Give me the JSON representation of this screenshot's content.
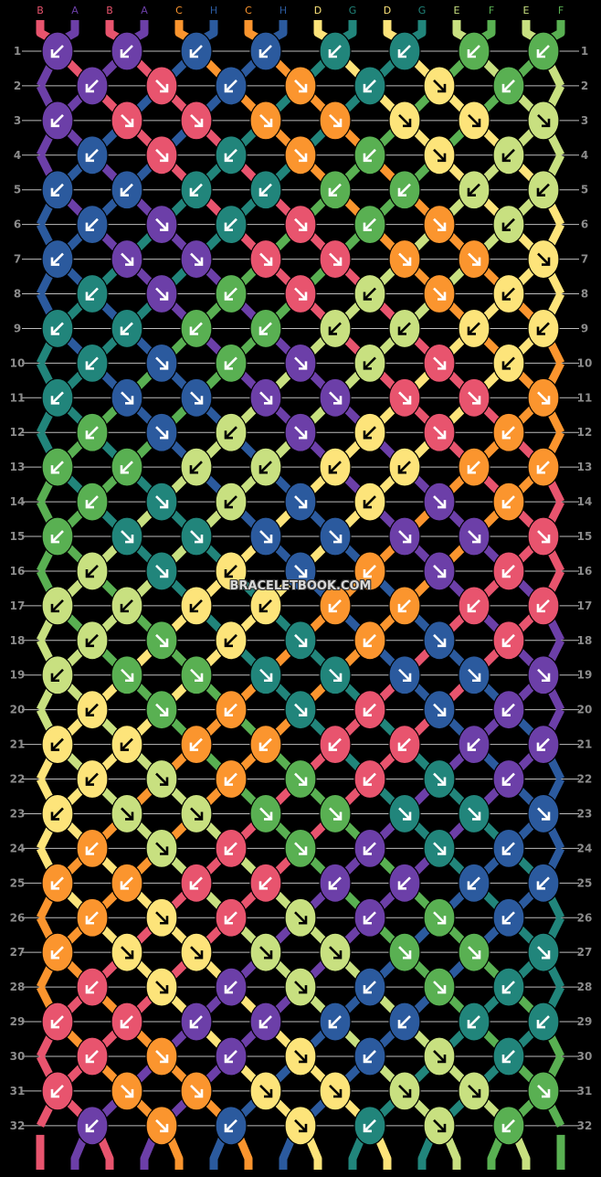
{
  "site": {
    "watermark": "BRACELETBOOK.COM"
  },
  "colors": {
    "A": "#6c3fa8",
    "B": "#e8546e",
    "C": "#fb952e",
    "H": "#2b5a9e",
    "D": "#fde47a",
    "G": "#21857b",
    "E": "#c8e080",
    "F": "#59b052"
  },
  "light_colors": [
    "D",
    "E"
  ],
  "strands_top": [
    "B",
    "A",
    "B",
    "A",
    "C",
    "H",
    "C",
    "H",
    "D",
    "G",
    "D",
    "G",
    "E",
    "F",
    "E",
    "F"
  ],
  "strands_bottom": [
    "B",
    "A",
    "B",
    "A",
    "C",
    "H",
    "C",
    "H",
    "D",
    "G",
    "D",
    "G",
    "E",
    "F",
    "E",
    "F"
  ],
  "row_count": 32,
  "rows": [
    {
      "n": 1,
      "knots": [
        [
          "A",
          "L"
        ],
        [
          "A",
          "L"
        ],
        [
          "H",
          "L"
        ],
        [
          "H",
          "L"
        ],
        [
          "G",
          "L"
        ],
        [
          "G",
          "L"
        ],
        [
          "F",
          "L"
        ],
        [
          "F",
          "L"
        ]
      ]
    },
    {
      "n": 2,
      "knots": [
        [
          "A",
          "L"
        ],
        [
          "B",
          "R"
        ],
        [
          "H",
          "L"
        ],
        [
          "C",
          "R"
        ],
        [
          "G",
          "L"
        ],
        [
          "D",
          "R"
        ],
        [
          "F",
          "L"
        ]
      ]
    },
    {
      "n": 3,
      "knots": [
        [
          "A",
          "L"
        ],
        [
          "B",
          "R"
        ],
        [
          "B",
          "R"
        ],
        [
          "C",
          "R"
        ],
        [
          "C",
          "R"
        ],
        [
          "D",
          "R"
        ],
        [
          "D",
          "R"
        ],
        [
          "E",
          "R"
        ]
      ]
    },
    {
      "n": 4,
      "knots": [
        [
          "H",
          "L"
        ],
        [
          "B",
          "R"
        ],
        [
          "G",
          "L"
        ],
        [
          "C",
          "R"
        ],
        [
          "F",
          "L"
        ],
        [
          "D",
          "R"
        ],
        [
          "E",
          "L"
        ]
      ]
    },
    {
      "n": 5,
      "knots": [
        [
          "H",
          "L"
        ],
        [
          "H",
          "L"
        ],
        [
          "G",
          "L"
        ],
        [
          "G",
          "L"
        ],
        [
          "F",
          "L"
        ],
        [
          "F",
          "L"
        ],
        [
          "E",
          "L"
        ],
        [
          "E",
          "L"
        ]
      ]
    },
    {
      "n": 6,
      "knots": [
        [
          "H",
          "L"
        ],
        [
          "A",
          "R"
        ],
        [
          "G",
          "L"
        ],
        [
          "B",
          "R"
        ],
        [
          "F",
          "L"
        ],
        [
          "C",
          "R"
        ],
        [
          "E",
          "L"
        ]
      ]
    },
    {
      "n": 7,
      "knots": [
        [
          "H",
          "L"
        ],
        [
          "A",
          "R"
        ],
        [
          "A",
          "R"
        ],
        [
          "B",
          "R"
        ],
        [
          "B",
          "R"
        ],
        [
          "C",
          "R"
        ],
        [
          "C",
          "R"
        ],
        [
          "D",
          "R"
        ]
      ]
    },
    {
      "n": 8,
      "knots": [
        [
          "G",
          "L"
        ],
        [
          "A",
          "R"
        ],
        [
          "F",
          "L"
        ],
        [
          "B",
          "R"
        ],
        [
          "E",
          "L"
        ],
        [
          "C",
          "R"
        ],
        [
          "D",
          "L"
        ]
      ]
    },
    {
      "n": 9,
      "knots": [
        [
          "G",
          "L"
        ],
        [
          "G",
          "L"
        ],
        [
          "F",
          "L"
        ],
        [
          "F",
          "L"
        ],
        [
          "E",
          "L"
        ],
        [
          "E",
          "L"
        ],
        [
          "D",
          "L"
        ],
        [
          "D",
          "L"
        ]
      ]
    },
    {
      "n": 10,
      "knots": [
        [
          "G",
          "L"
        ],
        [
          "H",
          "R"
        ],
        [
          "F",
          "L"
        ],
        [
          "A",
          "R"
        ],
        [
          "E",
          "L"
        ],
        [
          "B",
          "R"
        ],
        [
          "D",
          "L"
        ]
      ]
    },
    {
      "n": 11,
      "knots": [
        [
          "G",
          "L"
        ],
        [
          "H",
          "R"
        ],
        [
          "H",
          "R"
        ],
        [
          "A",
          "R"
        ],
        [
          "A",
          "R"
        ],
        [
          "B",
          "R"
        ],
        [
          "B",
          "R"
        ],
        [
          "C",
          "R"
        ]
      ]
    },
    {
      "n": 12,
      "knots": [
        [
          "F",
          "L"
        ],
        [
          "H",
          "R"
        ],
        [
          "E",
          "L"
        ],
        [
          "A",
          "R"
        ],
        [
          "D",
          "L"
        ],
        [
          "B",
          "R"
        ],
        [
          "C",
          "L"
        ]
      ]
    },
    {
      "n": 13,
      "knots": [
        [
          "F",
          "L"
        ],
        [
          "F",
          "L"
        ],
        [
          "E",
          "L"
        ],
        [
          "E",
          "L"
        ],
        [
          "D",
          "L"
        ],
        [
          "D",
          "L"
        ],
        [
          "C",
          "L"
        ],
        [
          "C",
          "L"
        ]
      ]
    },
    {
      "n": 14,
      "knots": [
        [
          "F",
          "L"
        ],
        [
          "G",
          "R"
        ],
        [
          "E",
          "L"
        ],
        [
          "H",
          "R"
        ],
        [
          "D",
          "L"
        ],
        [
          "A",
          "R"
        ],
        [
          "C",
          "L"
        ]
      ]
    },
    {
      "n": 15,
      "knots": [
        [
          "F",
          "L"
        ],
        [
          "G",
          "R"
        ],
        [
          "G",
          "R"
        ],
        [
          "H",
          "R"
        ],
        [
          "H",
          "R"
        ],
        [
          "A",
          "R"
        ],
        [
          "A",
          "R"
        ],
        [
          "B",
          "R"
        ]
      ]
    },
    {
      "n": 16,
      "knots": [
        [
          "E",
          "L"
        ],
        [
          "G",
          "R"
        ],
        [
          "D",
          "L"
        ],
        [
          "H",
          "R"
        ],
        [
          "C",
          "L"
        ],
        [
          "A",
          "R"
        ],
        [
          "B",
          "L"
        ]
      ]
    },
    {
      "n": 17,
      "knots": [
        [
          "E",
          "L"
        ],
        [
          "E",
          "L"
        ],
        [
          "D",
          "L"
        ],
        [
          "D",
          "L"
        ],
        [
          "C",
          "L"
        ],
        [
          "C",
          "L"
        ],
        [
          "B",
          "L"
        ],
        [
          "B",
          "L"
        ]
      ]
    },
    {
      "n": 18,
      "knots": [
        [
          "E",
          "L"
        ],
        [
          "F",
          "R"
        ],
        [
          "D",
          "L"
        ],
        [
          "G",
          "R"
        ],
        [
          "C",
          "L"
        ],
        [
          "H",
          "R"
        ],
        [
          "B",
          "L"
        ]
      ]
    },
    {
      "n": 19,
      "knots": [
        [
          "E",
          "L"
        ],
        [
          "F",
          "R"
        ],
        [
          "F",
          "R"
        ],
        [
          "G",
          "R"
        ],
        [
          "G",
          "R"
        ],
        [
          "H",
          "R"
        ],
        [
          "H",
          "R"
        ],
        [
          "A",
          "R"
        ]
      ]
    },
    {
      "n": 20,
      "knots": [
        [
          "D",
          "L"
        ],
        [
          "F",
          "R"
        ],
        [
          "C",
          "L"
        ],
        [
          "G",
          "R"
        ],
        [
          "B",
          "L"
        ],
        [
          "H",
          "R"
        ],
        [
          "A",
          "L"
        ]
      ]
    },
    {
      "n": 21,
      "knots": [
        [
          "D",
          "L"
        ],
        [
          "D",
          "L"
        ],
        [
          "C",
          "L"
        ],
        [
          "C",
          "L"
        ],
        [
          "B",
          "L"
        ],
        [
          "B",
          "L"
        ],
        [
          "A",
          "L"
        ],
        [
          "A",
          "L"
        ]
      ]
    },
    {
      "n": 22,
      "knots": [
        [
          "D",
          "L"
        ],
        [
          "E",
          "R"
        ],
        [
          "C",
          "L"
        ],
        [
          "F",
          "R"
        ],
        [
          "B",
          "L"
        ],
        [
          "G",
          "R"
        ],
        [
          "A",
          "L"
        ]
      ]
    },
    {
      "n": 23,
      "knots": [
        [
          "D",
          "L"
        ],
        [
          "E",
          "R"
        ],
        [
          "E",
          "R"
        ],
        [
          "F",
          "R"
        ],
        [
          "F",
          "R"
        ],
        [
          "G",
          "R"
        ],
        [
          "G",
          "R"
        ],
        [
          "H",
          "R"
        ]
      ]
    },
    {
      "n": 24,
      "knots": [
        [
          "C",
          "L"
        ],
        [
          "E",
          "R"
        ],
        [
          "B",
          "L"
        ],
        [
          "F",
          "R"
        ],
        [
          "A",
          "L"
        ],
        [
          "G",
          "R"
        ],
        [
          "H",
          "L"
        ]
      ]
    },
    {
      "n": 25,
      "knots": [
        [
          "C",
          "L"
        ],
        [
          "C",
          "L"
        ],
        [
          "B",
          "L"
        ],
        [
          "B",
          "L"
        ],
        [
          "A",
          "L"
        ],
        [
          "A",
          "L"
        ],
        [
          "H",
          "L"
        ],
        [
          "H",
          "L"
        ]
      ]
    },
    {
      "n": 26,
      "knots": [
        [
          "C",
          "L"
        ],
        [
          "D",
          "R"
        ],
        [
          "B",
          "L"
        ],
        [
          "E",
          "R"
        ],
        [
          "A",
          "L"
        ],
        [
          "F",
          "R"
        ],
        [
          "H",
          "L"
        ]
      ]
    },
    {
      "n": 27,
      "knots": [
        [
          "C",
          "L"
        ],
        [
          "D",
          "R"
        ],
        [
          "D",
          "R"
        ],
        [
          "E",
          "R"
        ],
        [
          "E",
          "R"
        ],
        [
          "F",
          "R"
        ],
        [
          "F",
          "R"
        ],
        [
          "G",
          "R"
        ]
      ]
    },
    {
      "n": 28,
      "knots": [
        [
          "B",
          "L"
        ],
        [
          "D",
          "R"
        ],
        [
          "A",
          "L"
        ],
        [
          "E",
          "R"
        ],
        [
          "H",
          "L"
        ],
        [
          "F",
          "R"
        ],
        [
          "G",
          "L"
        ]
      ]
    },
    {
      "n": 29,
      "knots": [
        [
          "B",
          "L"
        ],
        [
          "B",
          "L"
        ],
        [
          "A",
          "L"
        ],
        [
          "A",
          "L"
        ],
        [
          "H",
          "L"
        ],
        [
          "H",
          "L"
        ],
        [
          "G",
          "L"
        ],
        [
          "G",
          "L"
        ]
      ]
    },
    {
      "n": 30,
      "knots": [
        [
          "B",
          "L"
        ],
        [
          "C",
          "R"
        ],
        [
          "A",
          "L"
        ],
        [
          "D",
          "R"
        ],
        [
          "H",
          "L"
        ],
        [
          "E",
          "R"
        ],
        [
          "G",
          "L"
        ]
      ]
    },
    {
      "n": 31,
      "knots": [
        [
          "B",
          "L"
        ],
        [
          "C",
          "R"
        ],
        [
          "C",
          "R"
        ],
        [
          "D",
          "R"
        ],
        [
          "D",
          "R"
        ],
        [
          "E",
          "R"
        ],
        [
          "E",
          "R"
        ],
        [
          "F",
          "R"
        ]
      ]
    },
    {
      "n": 32,
      "knots": [
        [
          "A",
          "L"
        ],
        [
          "C",
          "R"
        ],
        [
          "H",
          "L"
        ],
        [
          "D",
          "R"
        ],
        [
          "G",
          "L"
        ],
        [
          "E",
          "R"
        ],
        [
          "F",
          "L"
        ]
      ]
    }
  ]
}
